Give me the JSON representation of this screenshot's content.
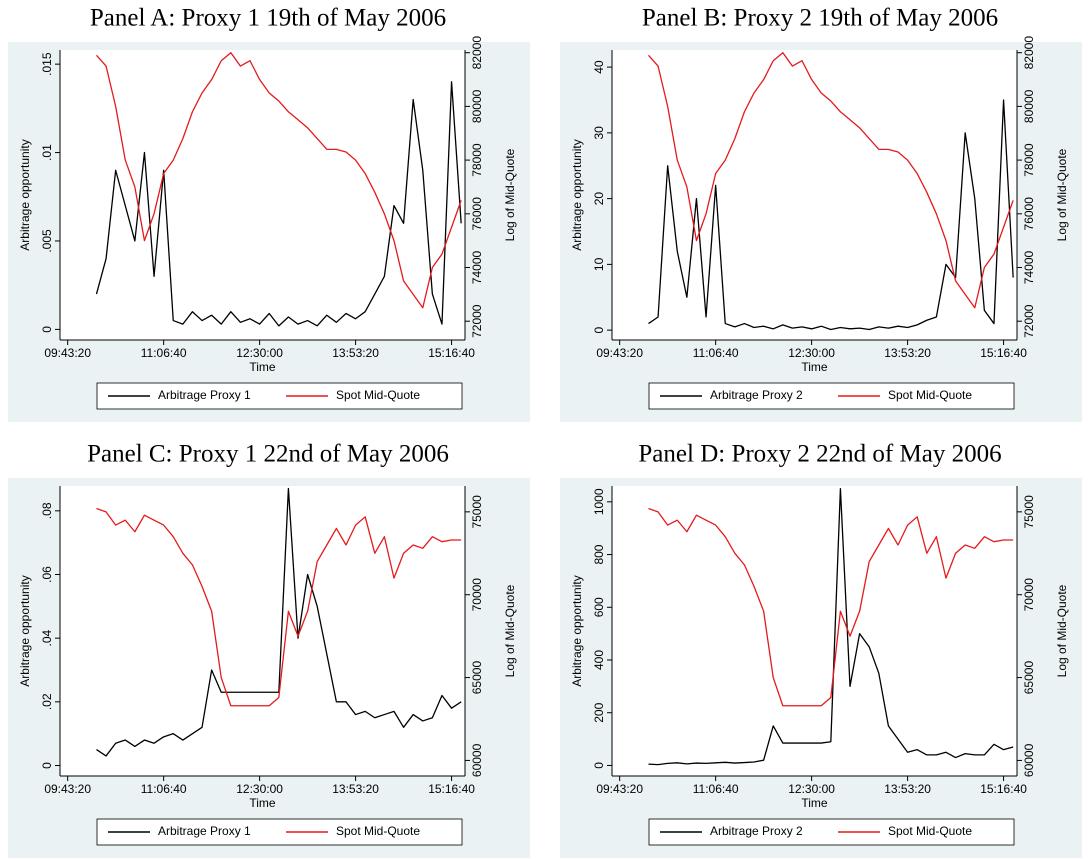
{
  "chart_data": [
    {
      "type": "line",
      "title": "Panel A: Proxy 1 19th of May 2006",
      "x_label": "Time",
      "y_label": "Arbitrage opportunity",
      "y2_label": "Log of Mid-Quote",
      "legend": "bottom",
      "x": [
        36500,
        37000,
        37500,
        38000,
        38500,
        39000,
        39500,
        40000,
        40500,
        41000,
        41500,
        42000,
        42500,
        43000,
        43500,
        44000,
        44500,
        45000,
        45500,
        46000,
        46500,
        47000,
        47500,
        48000,
        48500,
        49000,
        49500,
        50000,
        50500,
        51000,
        51500,
        52000,
        52500,
        53000,
        53500,
        54000,
        54500,
        55000,
        55500
      ],
      "xlim": [
        34600,
        55700
      ],
      "xticks": [
        {
          "value": 35000,
          "label": "09:43:20"
        },
        {
          "value": 40000,
          "label": "11:06:40"
        },
        {
          "value": 45000,
          "label": "12:30:00"
        },
        {
          "value": 50000,
          "label": "13:53:20"
        },
        {
          "value": 55000,
          "label": "15:16:40"
        }
      ],
      "ylim": [
        -0.0006,
        0.0158
      ],
      "yticks": [
        0,
        {
          "value": 0.005,
          "label": ".005"
        },
        {
          "value": 0.01,
          "label": ".01"
        },
        {
          "value": 0.015,
          "label": ".015"
        }
      ],
      "y2lim": [
        71300,
        82100
      ],
      "y2ticks": [
        72000,
        74000,
        76000,
        78000,
        80000,
        82000
      ],
      "series": [
        {
          "name": "Arbitrage Proxy 1",
          "color": "#000000",
          "values": [
            0.002,
            0.004,
            0.009,
            0.007,
            0.005,
            0.01,
            0.003,
            0.009,
            0.0005,
            0.0003,
            0.001,
            0.0005,
            0.0008,
            0.0003,
            0.001,
            0.0004,
            0.0006,
            0.0003,
            0.0009,
            0.0002,
            0.0007,
            0.0003,
            0.0005,
            0.0002,
            0.0008,
            0.0004,
            0.0009,
            0.0006,
            0.001,
            0.002,
            0.003,
            0.007,
            0.006,
            0.013,
            0.009,
            0.002,
            0.0003,
            0.014,
            0.006
          ]
        },
        {
          "name": "Spot Mid-Quote",
          "color": "#e41a1c",
          "axis": "y2",
          "values": [
            81900,
            81500,
            80000,
            78000,
            77000,
            75000,
            76000,
            77500,
            78000,
            78800,
            79800,
            80500,
            81000,
            81700,
            82000,
            81500,
            81700,
            81000,
            80500,
            80200,
            79800,
            79500,
            79200,
            78800,
            78400,
            78400,
            78300,
            78000,
            77500,
            76800,
            76000,
            75000,
            73500,
            73000,
            72500,
            74000,
            74500,
            75500,
            76500
          ]
        }
      ]
    },
    {
      "type": "line",
      "title": "Panel B: Proxy 2 19th of May 2006",
      "x_label": "Time",
      "y_label": "Arbitrage opportunity",
      "y2_label": "Log of Mid-Quote",
      "legend": "bottom",
      "x": [
        36500,
        37000,
        37500,
        38000,
        38500,
        39000,
        39500,
        40000,
        40500,
        41000,
        41500,
        42000,
        42500,
        43000,
        43500,
        44000,
        44500,
        45000,
        45500,
        46000,
        46500,
        47000,
        47500,
        48000,
        48500,
        49000,
        49500,
        50000,
        50500,
        51000,
        51500,
        52000,
        52500,
        53000,
        53500,
        54000,
        54500,
        55000,
        55500
      ],
      "xlim": [
        34600,
        55700
      ],
      "xticks": [
        {
          "value": 35000,
          "label": "09:43:20"
        },
        {
          "value": 40000,
          "label": "11:06:40"
        },
        {
          "value": 45000,
          "label": "12:30:00"
        },
        {
          "value": 50000,
          "label": "13:53:20"
        },
        {
          "value": 55000,
          "label": "15:16:40"
        }
      ],
      "ylim": [
        -1.5,
        42.6
      ],
      "yticks": [
        0,
        10,
        20,
        30,
        40
      ],
      "y2lim": [
        71300,
        82100
      ],
      "y2ticks": [
        72000,
        74000,
        76000,
        78000,
        80000,
        82000
      ],
      "series": [
        {
          "name": "Arbitrage Proxy 2",
          "color": "#000000",
          "values": [
            1,
            2,
            25,
            12,
            5,
            20,
            2,
            22,
            1,
            0.5,
            1,
            0.4,
            0.6,
            0.2,
            0.8,
            0.3,
            0.5,
            0.2,
            0.6,
            0.1,
            0.4,
            0.2,
            0.3,
            0.1,
            0.5,
            0.3,
            0.6,
            0.4,
            0.8,
            1.5,
            2,
            10,
            8,
            30,
            20,
            3,
            1,
            35,
            8
          ]
        },
        {
          "name": "Spot Mid-Quote",
          "color": "#e41a1c",
          "axis": "y2",
          "values": [
            81900,
            81500,
            80000,
            78000,
            77000,
            75000,
            76000,
            77500,
            78000,
            78800,
            79800,
            80500,
            81000,
            81700,
            82000,
            81500,
            81700,
            81000,
            80500,
            80200,
            79800,
            79500,
            79200,
            78800,
            78400,
            78400,
            78300,
            78000,
            77500,
            76800,
            76000,
            75000,
            73500,
            73000,
            72500,
            74000,
            74500,
            75500,
            76500
          ]
        }
      ]
    },
    {
      "type": "line",
      "title": "Panel C: Proxy 1 22nd of May 2006",
      "x_label": "Time",
      "y_label": "Arbitrage opportunity",
      "y2_label": "Log of Mid-Quote",
      "legend": "bottom",
      "x": [
        36500,
        37000,
        37500,
        38000,
        38500,
        39000,
        39500,
        40000,
        40500,
        41000,
        41500,
        42000,
        42500,
        43000,
        43500,
        44000,
        44500,
        45000,
        45500,
        46000,
        46500,
        47000,
        47500,
        48000,
        48500,
        49000,
        49500,
        50000,
        50500,
        51000,
        51500,
        52000,
        52500,
        53000,
        53500,
        54000,
        54500,
        55000,
        55500
      ],
      "xlim": [
        34600,
        55700
      ],
      "xticks": [
        {
          "value": 35000,
          "label": "09:43:20"
        },
        {
          "value": 40000,
          "label": "11:06:40"
        },
        {
          "value": 45000,
          "label": "12:30:00"
        },
        {
          "value": 50000,
          "label": "13:53:20"
        },
        {
          "value": 55000,
          "label": "15:16:40"
        }
      ],
      "ylim": [
        -0.0033,
        0.0878
      ],
      "yticks": [
        0,
        {
          "value": 0.02,
          "label": ".02"
        },
        {
          "value": 0.04,
          "label": ".04"
        },
        {
          "value": 0.06,
          "label": ".06"
        },
        {
          "value": 0.08,
          "label": ".08"
        }
      ],
      "y2lim": [
        59060,
        76560
      ],
      "y2ticks": [
        60000,
        65000,
        70000,
        75000
      ],
      "series": [
        {
          "name": "Arbitrage Proxy 1",
          "color": "#000000",
          "values": [
            0.005,
            0.003,
            0.007,
            0.008,
            0.006,
            0.008,
            0.007,
            0.009,
            0.01,
            0.008,
            0.01,
            0.012,
            0.03,
            0.023,
            0.023,
            0.023,
            0.023,
            0.023,
            0.023,
            0.023,
            0.087,
            0.04,
            0.06,
            0.05,
            0.035,
            0.02,
            0.02,
            0.016,
            0.017,
            0.015,
            0.016,
            0.017,
            0.012,
            0.016,
            0.014,
            0.015,
            0.022,
            0.018,
            0.02
          ]
        },
        {
          "name": "Spot Mid-Quote",
          "color": "#e41a1c",
          "axis": "y2",
          "values": [
            75200,
            75000,
            74200,
            74500,
            73800,
            74800,
            74500,
            74200,
            73500,
            72500,
            71800,
            70500,
            69000,
            65000,
            63300,
            63300,
            63300,
            63300,
            63300,
            63800,
            69000,
            67500,
            69000,
            72000,
            73000,
            74000,
            73000,
            74200,
            74700,
            72500,
            73500,
            71000,
            72500,
            73000,
            72800,
            73500,
            73200,
            73300,
            73300
          ]
        }
      ]
    },
    {
      "type": "line",
      "title": "Panel D: Proxy 2 22nd of May 2006",
      "x_label": "Time",
      "y_label": "Arbitrage opportunity",
      "y2_label": "Log of Mid-Quote",
      "legend": "bottom",
      "x": [
        36500,
        37000,
        37500,
        38000,
        38500,
        39000,
        39500,
        40000,
        40500,
        41000,
        41500,
        42000,
        42500,
        43000,
        43500,
        44000,
        44500,
        45000,
        45500,
        46000,
        46500,
        47000,
        47500,
        48000,
        48500,
        49000,
        49500,
        50000,
        50500,
        51000,
        51500,
        52000,
        52500,
        53000,
        53500,
        54000,
        54500,
        55000,
        55500
      ],
      "xlim": [
        34600,
        55700
      ],
      "xticks": [
        {
          "value": 35000,
          "label": "09:43:20"
        },
        {
          "value": 40000,
          "label": "11:06:40"
        },
        {
          "value": 45000,
          "label": "12:30:00"
        },
        {
          "value": 50000,
          "label": "13:53:20"
        },
        {
          "value": 55000,
          "label": "15:16:40"
        }
      ],
      "ylim": [
        -40,
        1060
      ],
      "yticks": [
        0,
        200,
        400,
        600,
        800,
        1000
      ],
      "y2lim": [
        59060,
        76560
      ],
      "y2ticks": [
        60000,
        65000,
        70000,
        75000
      ],
      "series": [
        {
          "name": "Arbitrage Proxy 2",
          "color": "#000000",
          "values": [
            5,
            3,
            8,
            10,
            6,
            9,
            8,
            10,
            12,
            9,
            11,
            13,
            20,
            150,
            85,
            85,
            85,
            85,
            85,
            90,
            1050,
            300,
            500,
            450,
            350,
            150,
            100,
            50,
            60,
            40,
            40,
            50,
            30,
            45,
            40,
            40,
            80,
            60,
            70
          ]
        },
        {
          "name": "Spot Mid-Quote",
          "color": "#e41a1c",
          "axis": "y2",
          "values": [
            75200,
            75000,
            74200,
            74500,
            73800,
            74800,
            74500,
            74200,
            73500,
            72500,
            71800,
            70500,
            69000,
            65000,
            63300,
            63300,
            63300,
            63300,
            63300,
            63800,
            69000,
            67500,
            69000,
            72000,
            73000,
            74000,
            73000,
            74200,
            74700,
            72500,
            73500,
            71000,
            72500,
            73000,
            72800,
            73500,
            73200,
            73300,
            73300
          ]
        }
      ]
    }
  ]
}
